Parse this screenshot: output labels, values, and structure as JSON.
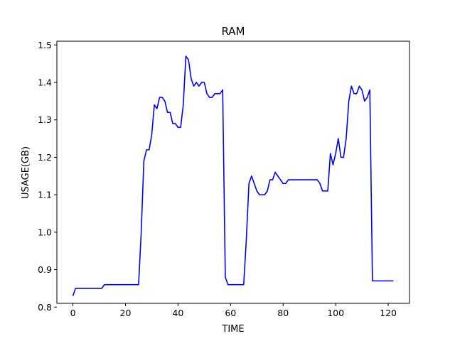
{
  "chart_data": {
    "type": "line",
    "title": "RAM",
    "xlabel": "TIME",
    "ylabel": "USAGE(GB)",
    "xlim": [
      -6.1,
      128.1
    ],
    "ylim": [
      0.81,
      1.51
    ],
    "x_ticks": [
      0,
      20,
      40,
      60,
      80,
      100,
      120
    ],
    "x_tick_labels": [
      "0",
      "20",
      "40",
      "60",
      "80",
      "100",
      "120"
    ],
    "y_ticks": [
      0.8,
      0.9,
      1.0,
      1.1,
      1.2,
      1.3,
      1.4,
      1.5
    ],
    "y_tick_labels": [
      "0.8",
      "0.9",
      "1.0",
      "1.1",
      "1.2",
      "1.3",
      "1.4",
      "1.5"
    ],
    "grid": false,
    "series": [
      {
        "color": "#0000ff",
        "x": [
          0,
          1,
          2,
          3,
          4,
          5,
          6,
          7,
          8,
          9,
          10,
          11,
          12,
          13,
          14,
          15,
          16,
          17,
          18,
          19,
          20,
          21,
          22,
          23,
          24,
          25,
          26,
          27,
          28,
          29,
          30,
          31,
          32,
          33,
          34,
          35,
          36,
          37,
          38,
          39,
          40,
          41,
          42,
          43,
          44,
          45,
          46,
          47,
          48,
          49,
          50,
          51,
          52,
          53,
          54,
          55,
          56,
          57,
          58,
          59,
          60,
          61,
          62,
          63,
          64,
          65,
          66,
          67,
          68,
          69,
          70,
          71,
          72,
          73,
          74,
          75,
          76,
          77,
          78,
          79,
          80,
          81,
          82,
          83,
          84,
          85,
          86,
          87,
          88,
          89,
          90,
          91,
          92,
          93,
          94,
          95,
          96,
          97,
          98,
          99,
          100,
          101,
          102,
          103,
          104,
          105,
          106,
          107,
          108,
          109,
          110,
          111,
          112,
          113,
          114,
          115,
          116,
          117,
          118,
          119,
          120,
          121,
          122
        ],
        "y": [
          0.83,
          0.85,
          0.85,
          0.85,
          0.85,
          0.85,
          0.85,
          0.85,
          0.85,
          0.85,
          0.85,
          0.85,
          0.86,
          0.86,
          0.86,
          0.86,
          0.86,
          0.86,
          0.86,
          0.86,
          0.86,
          0.86,
          0.86,
          0.86,
          0.86,
          0.86,
          1.0,
          1.19,
          1.22,
          1.22,
          1.26,
          1.34,
          1.33,
          1.36,
          1.36,
          1.35,
          1.32,
          1.32,
          1.29,
          1.29,
          1.28,
          1.28,
          1.34,
          1.47,
          1.46,
          1.41,
          1.39,
          1.4,
          1.39,
          1.4,
          1.4,
          1.37,
          1.36,
          1.36,
          1.37,
          1.37,
          1.37,
          1.38,
          0.88,
          0.86,
          0.86,
          0.86,
          0.86,
          0.86,
          0.86,
          0.86,
          0.98,
          1.13,
          1.15,
          1.13,
          1.11,
          1.1,
          1.1,
          1.1,
          1.11,
          1.14,
          1.14,
          1.16,
          1.15,
          1.14,
          1.13,
          1.13,
          1.14,
          1.14,
          1.14,
          1.14,
          1.14,
          1.14,
          1.14,
          1.14,
          1.14,
          1.14,
          1.14,
          1.14,
          1.13,
          1.11,
          1.11,
          1.11,
          1.21,
          1.18,
          1.21,
          1.25,
          1.2,
          1.2,
          1.25,
          1.35,
          1.39,
          1.37,
          1.37,
          1.39,
          1.38,
          1.35,
          1.36,
          1.38,
          0.87,
          0.87,
          0.87,
          0.87,
          0.87,
          0.87,
          0.87,
          0.87,
          0.87
        ]
      }
    ]
  }
}
